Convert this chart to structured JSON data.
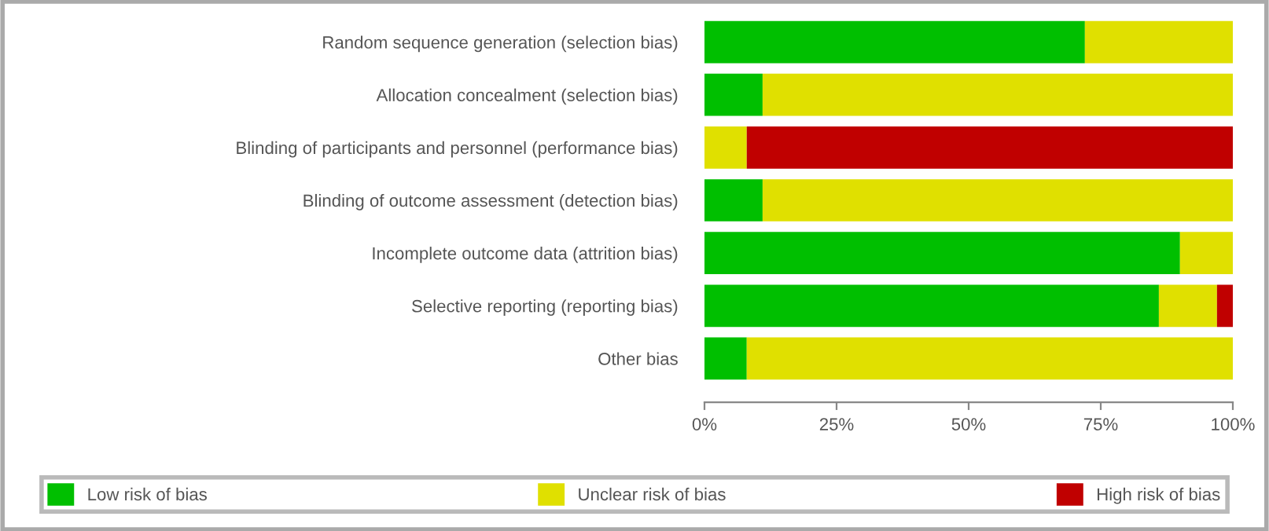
{
  "chart_data": {
    "type": "bar",
    "orientation": "horizontal",
    "stacked": true,
    "categories": [
      "Random sequence generation (selection bias)",
      "Allocation concealment (selection bias)",
      "Blinding of participants and personnel (performance bias)",
      "Blinding of outcome assessment (detection bias)",
      "Incomplete outcome data (attrition bias)",
      "Selective reporting (reporting bias)",
      "Other bias"
    ],
    "series": [
      {
        "name": "Low risk of bias",
        "color": "#00bf00",
        "values": [
          72,
          11,
          0,
          11,
          90,
          86,
          8
        ]
      },
      {
        "name": "Unclear risk of bias",
        "color": "#e0e000",
        "values": [
          28,
          89,
          8,
          89,
          10,
          11,
          92
        ]
      },
      {
        "name": "High risk of bias",
        "color": "#c00000",
        "values": [
          0,
          0,
          92,
          0,
          0,
          3,
          0
        ]
      }
    ],
    "xlim": [
      0,
      100
    ],
    "xticks": [
      {
        "value": 0,
        "label": "0%"
      },
      {
        "value": 25,
        "label": "25%"
      },
      {
        "value": 50,
        "label": "50%"
      },
      {
        "value": 75,
        "label": "75%"
      },
      {
        "value": 100,
        "label": "100%"
      }
    ],
    "legend": "bottom",
    "grid": false
  }
}
